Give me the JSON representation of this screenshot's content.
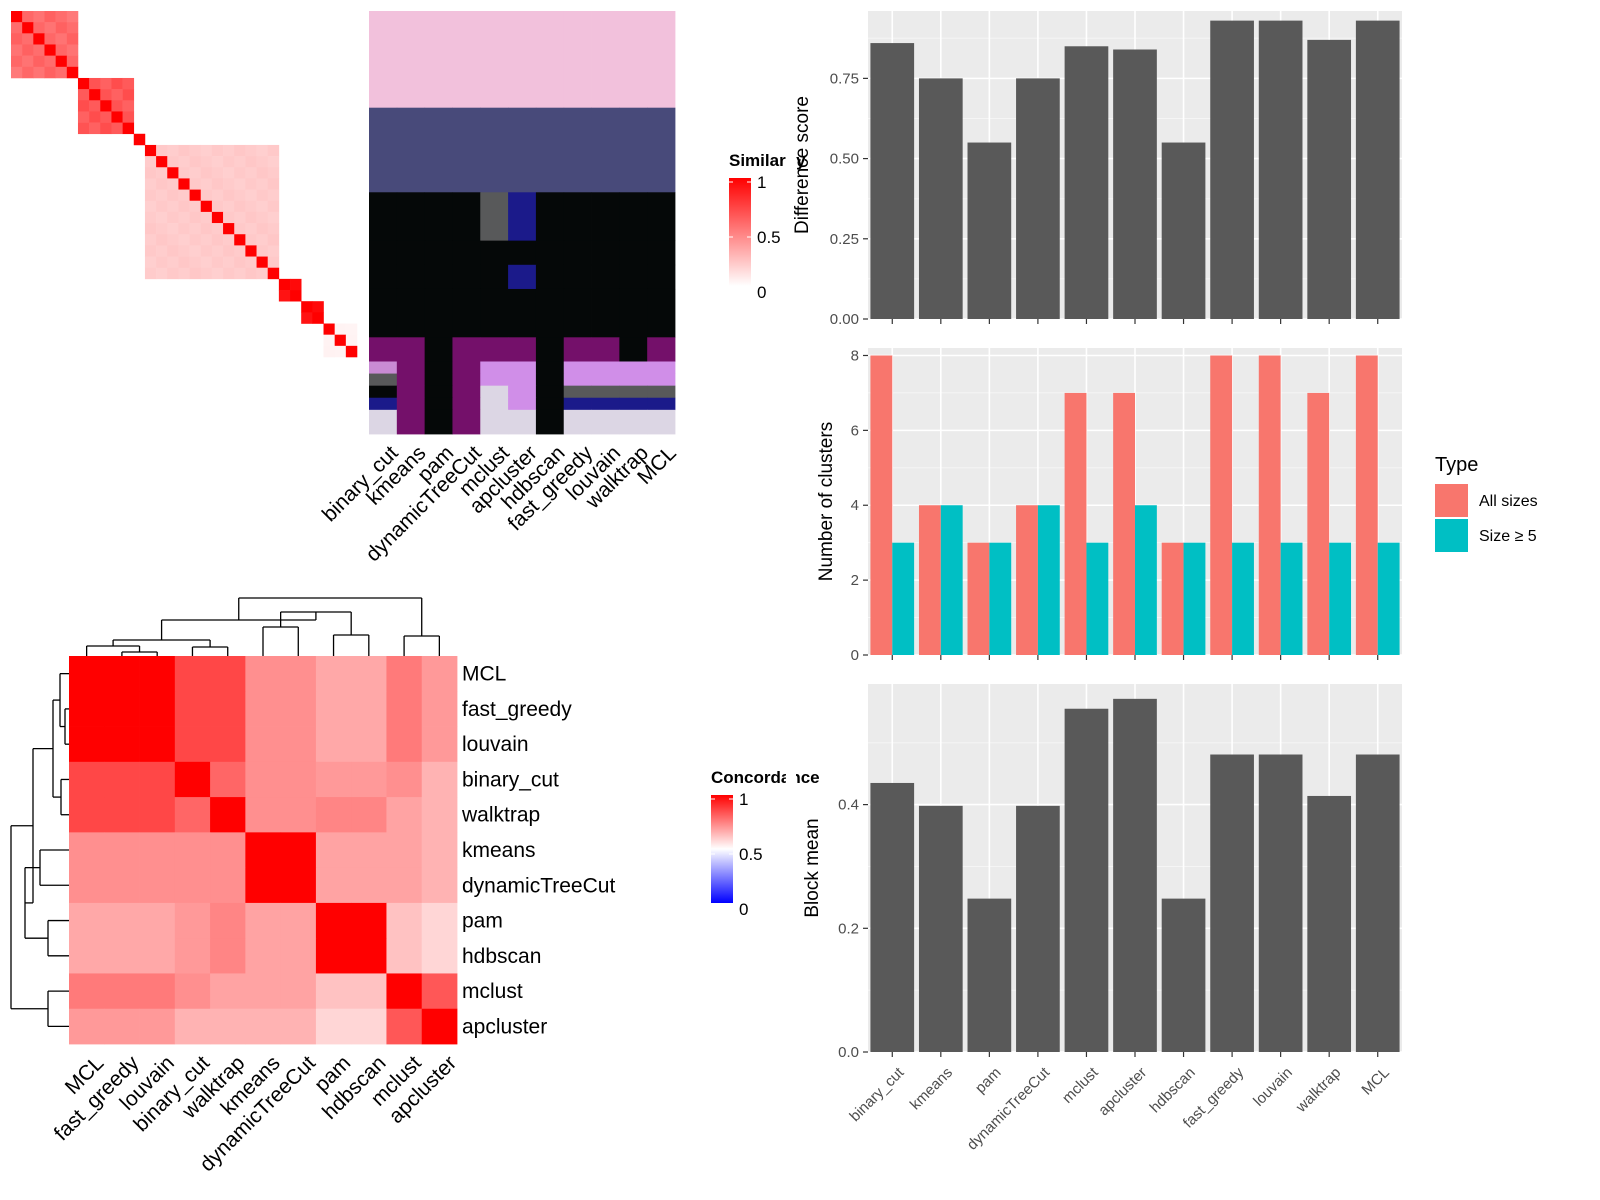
{
  "chart_data": [
    {
      "type": "heatmap",
      "name": "cell-similarity-heatmap",
      "legend_title": "Similarity",
      "legend_ticks": [
        "1",
        "0.5",
        "0"
      ],
      "color_scale": [
        "#ffffff",
        "#ff0000"
      ],
      "blocks": [
        {
          "size": 6,
          "within": 0.62
        },
        {
          "size": 5,
          "within": 0.7
        },
        {
          "size": 1,
          "within": 1
        },
        {
          "size": 12,
          "within": 0.22
        },
        {
          "size": 2,
          "within": 1
        },
        {
          "size": 2,
          "within": 1
        },
        {
          "size": 3,
          "within": 0.05
        }
      ]
    },
    {
      "type": "table",
      "name": "cluster-assignment-grid",
      "methods": [
        "binary_cut",
        "kmeans",
        "pam",
        "dynamicTreeCut",
        "mclust",
        "apcluster",
        "hdbscan",
        "fast_greedy",
        "louvain",
        "walktrap",
        "MCL"
      ],
      "row_bands": [
        {
          "rows": 8,
          "cols": [
            "#f2c1dc",
            "#f2c1dc",
            "#f2c1dc",
            "#f2c1dc",
            "#f2c1dc",
            "#f2c1dc",
            "#f2c1dc",
            "#f2c1dc",
            "#f2c1dc",
            "#f2c1dc",
            "#f2c1dc"
          ]
        },
        {
          "rows": 7,
          "cols": [
            "#484a7a",
            "#484a7a",
            "#484a7a",
            "#484a7a",
            "#484a7a",
            "#484a7a",
            "#484a7a",
            "#484a7a",
            "#484a7a",
            "#484a7a",
            "#484a7a"
          ]
        },
        {
          "rows": 4,
          "cols": [
            "#050808",
            "#050808",
            "#050808",
            "#050808",
            "#58595a",
            "#1b1a8a",
            "#050808",
            "#050808",
            "#050808",
            "#050808",
            "#050808"
          ]
        },
        {
          "rows": 2,
          "cols": [
            "#050808",
            "#050808",
            "#050808",
            "#050808",
            "#050808",
            "#050808",
            "#050808",
            "#050808",
            "#050808",
            "#050808",
            "#050808"
          ]
        },
        {
          "rows": 2,
          "cols": [
            "#050808",
            "#050808",
            "#050808",
            "#050808",
            "#050808",
            "#1b1a8a",
            "#050808",
            "#050808",
            "#050808",
            "#050808",
            "#050808"
          ]
        },
        {
          "rows": 4,
          "cols": [
            "#050808",
            "#050808",
            "#050808",
            "#050808",
            "#050808",
            "#050808",
            "#050808",
            "#050808",
            "#050808",
            "#050808",
            "#050808"
          ]
        },
        {
          "rows": 2,
          "cols": [
            "#74106a",
            "#74106a",
            "#050808",
            "#74106a",
            "#74106a",
            "#74106a",
            "#050808",
            "#74106a",
            "#74106a",
            "#050808",
            "#74106a"
          ]
        },
        {
          "rows": 1,
          "cols": [
            "#c98bd4",
            "#74106a",
            "#050808",
            "#74106a",
            "#d08ee8",
            "#d08ee8",
            "#050808",
            "#d08ee8",
            "#d08ee8",
            "#d08ee8",
            "#d08ee8"
          ]
        },
        {
          "rows": 1,
          "cols": [
            "#58595a",
            "#74106a",
            "#050808",
            "#74106a",
            "#d08ee8",
            "#d08ee8",
            "#050808",
            "#d08ee8",
            "#d08ee8",
            "#d08ee8",
            "#d08ee8"
          ]
        },
        {
          "rows": 1,
          "cols": [
            "#050808",
            "#74106a",
            "#050808",
            "#74106a",
            "#dcd6e4",
            "#d08ee8",
            "#050808",
            "#58595a",
            "#58595a",
            "#58595a",
            "#58595a"
          ]
        },
        {
          "rows": 1,
          "cols": [
            "#1b1a8a",
            "#74106a",
            "#050808",
            "#74106a",
            "#dcd6e4",
            "#d08ee8",
            "#050808",
            "#1b1a8a",
            "#1b1a8a",
            "#1b1a8a",
            "#1b1a8a"
          ]
        },
        {
          "rows": 2,
          "cols": [
            "#dcd6e4",
            "#74106a",
            "#050808",
            "#74106a",
            "#dcd6e4",
            "#dcd6e4",
            "#050808",
            "#dcd6e4",
            "#dcd6e4",
            "#dcd6e4",
            "#dcd6e4"
          ]
        }
      ]
    },
    {
      "type": "heatmap",
      "name": "concordance-heatmap",
      "legend_title": "Concordance",
      "legend_ticks": [
        "1",
        "0.5",
        "0"
      ],
      "color_scale": [
        "#0000ff",
        "#ffffff",
        "#ff0000"
      ],
      "labels": [
        "MCL",
        "fast_greedy",
        "louvain",
        "binary_cut",
        "walktrap",
        "kmeans",
        "dynamicTreeCut",
        "pam",
        "hdbscan",
        "mclust",
        "apcluster"
      ],
      "matrix": [
        [
          1,
          1,
          1,
          0.86,
          0.86,
          0.72,
          0.72,
          0.67,
          0.67,
          0.76,
          0.7
        ],
        [
          1,
          1,
          1,
          0.86,
          0.86,
          0.72,
          0.72,
          0.67,
          0.67,
          0.76,
          0.7
        ],
        [
          1,
          1,
          1,
          0.86,
          0.86,
          0.72,
          0.72,
          0.67,
          0.67,
          0.76,
          0.7
        ],
        [
          0.86,
          0.86,
          0.86,
          1,
          0.8,
          0.72,
          0.72,
          0.7,
          0.7,
          0.72,
          0.65
        ],
        [
          0.86,
          0.86,
          0.86,
          0.8,
          1,
          0.72,
          0.72,
          0.74,
          0.74,
          0.68,
          0.65
        ],
        [
          0.72,
          0.72,
          0.72,
          0.72,
          0.72,
          1,
          1,
          0.68,
          0.68,
          0.68,
          0.65
        ],
        [
          0.72,
          0.72,
          0.72,
          0.72,
          0.72,
          1,
          1,
          0.68,
          0.68,
          0.68,
          0.65
        ],
        [
          0.67,
          0.67,
          0.67,
          0.7,
          0.74,
          0.68,
          0.68,
          1,
          1,
          0.62,
          0.58
        ],
        [
          0.67,
          0.67,
          0.67,
          0.7,
          0.74,
          0.68,
          0.68,
          1,
          1,
          0.62,
          0.58
        ],
        [
          0.76,
          0.76,
          0.76,
          0.72,
          0.68,
          0.68,
          0.68,
          0.62,
          0.62,
          1,
          0.83
        ],
        [
          0.7,
          0.7,
          0.7,
          0.65,
          0.65,
          0.65,
          0.65,
          0.58,
          0.58,
          0.83,
          1
        ]
      ]
    },
    {
      "type": "bar",
      "name": "difference-score",
      "categories": [
        "binary_cut",
        "kmeans",
        "pam",
        "dynamicTreeCut",
        "mclust",
        "apcluster",
        "hdbscan",
        "fast_greedy",
        "louvain",
        "walktrap",
        "MCL"
      ],
      "values": [
        0.86,
        0.75,
        0.55,
        0.75,
        0.85,
        0.84,
        0.55,
        0.93,
        0.93,
        0.87,
        0.93
      ],
      "ylabel": "Difference score",
      "ylim": [
        0,
        0.96
      ],
      "yticks": [
        0,
        0.25,
        0.5,
        0.75
      ],
      "ytick_labels": [
        "0.00",
        "0.25",
        "0.50",
        "0.75"
      ],
      "bar_color": "#595959"
    },
    {
      "type": "bar",
      "name": "number-of-clusters",
      "categories": [
        "binary_cut",
        "kmeans",
        "pam",
        "dynamicTreeCut",
        "mclust",
        "apcluster",
        "hdbscan",
        "fast_greedy",
        "louvain",
        "walktrap",
        "MCL"
      ],
      "series": [
        {
          "name": "All sizes",
          "values": [
            8,
            4,
            3,
            4,
            7,
            7,
            3,
            8,
            8,
            7,
            8
          ],
          "color": "#f8766d"
        },
        {
          "name": "Size ≥ 5",
          "values": [
            3,
            4,
            3,
            4,
            3,
            4,
            3,
            3,
            3,
            3,
            3
          ],
          "color": "#00bfc4"
        }
      ],
      "ylabel": "Number of clusters",
      "ylim": [
        0,
        8.2
      ],
      "yticks": [
        0,
        2,
        4,
        6,
        8
      ],
      "ytick_labels": [
        "0",
        "2",
        "4",
        "6",
        "8"
      ],
      "legend_title": "Type",
      "legend_position": "right"
    },
    {
      "type": "bar",
      "name": "block-mean",
      "categories": [
        "binary_cut",
        "kmeans",
        "pam",
        "dynamicTreeCut",
        "mclust",
        "apcluster",
        "hdbscan",
        "fast_greedy",
        "louvain",
        "walktrap",
        "MCL"
      ],
      "values": [
        0.435,
        0.398,
        0.248,
        0.398,
        0.555,
        0.571,
        0.248,
        0.481,
        0.481,
        0.414,
        0.481
      ],
      "ylabel": "Block mean",
      "ylim": [
        0,
        0.595
      ],
      "yticks": [
        0,
        0.2,
        0.4
      ],
      "ytick_labels": [
        "0.0",
        "0.2",
        "0.4"
      ],
      "bar_color": "#595959"
    }
  ]
}
